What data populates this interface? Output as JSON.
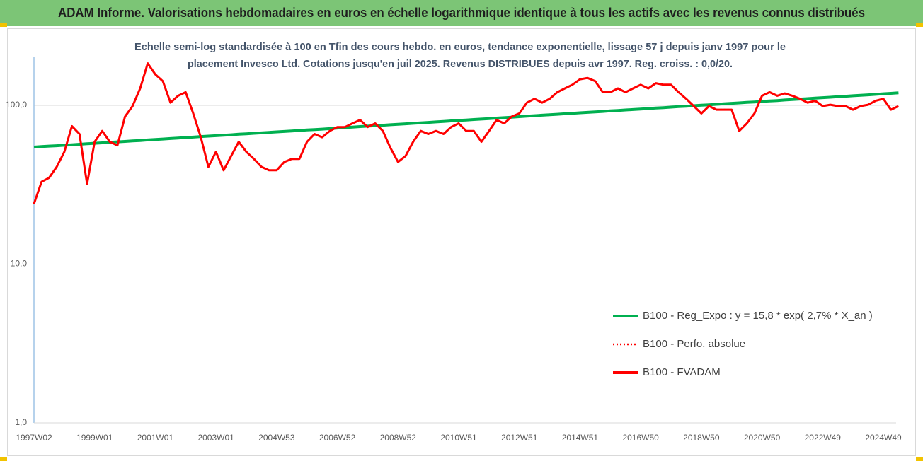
{
  "chart_data": {
    "type": "line",
    "title": "ADAM Informe. Valorisations hebdomadaires en euros en échelle logarithmique identique à tous les actifs avec les revenus connus distribués",
    "subtitle": [
      "Echelle semi-log standardisée à 100 en Tfin des cours hebdo. en euros, tendance exponentielle, lissage 57 j depuis janv 1997 pour le",
      "placement Invesco Ltd. Cotations jusqu'en juil 2025.  Revenus DISTRIBUES depuis avr 1997. Reg. croiss. : 0,0/20."
    ],
    "categories": [
      "1997W02",
      null,
      null,
      null,
      null,
      null,
      null,
      null,
      "1999W01",
      null,
      null,
      null,
      null,
      null,
      null,
      null,
      "2001W01",
      null,
      null,
      null,
      null,
      null,
      null,
      null,
      "2003W01",
      null,
      null,
      null,
      null,
      null,
      null,
      null,
      "2004W53",
      null,
      null,
      null,
      null,
      null,
      null,
      null,
      "2006W52",
      null,
      null,
      null,
      null,
      null,
      null,
      null,
      "2008W52",
      null,
      null,
      null,
      null,
      null,
      null,
      null,
      "2010W51",
      null,
      null,
      null,
      null,
      null,
      null,
      null,
      "2012W51",
      null,
      null,
      null,
      null,
      null,
      null,
      null,
      "2014W51",
      null,
      null,
      null,
      null,
      null,
      null,
      null,
      "2016W50",
      null,
      null,
      null,
      null,
      null,
      null,
      null,
      "2018W50",
      null,
      null,
      null,
      null,
      null,
      null,
      null,
      "2020W50",
      null,
      null,
      null,
      null,
      null,
      null,
      null,
      "2022W49",
      null,
      null,
      null,
      null,
      null,
      null,
      null,
      "2024W49",
      null,
      null
    ],
    "series": [
      {
        "name": "B100 - Reg_Expo : y = 15,8 * exp( 2,7% *  X_an )",
        "color": "#00b050",
        "style": "solid",
        "values": [
          54.6,
          55.0,
          55.4,
          55.7,
          56.1,
          56.5,
          56.9,
          57.3,
          57.7,
          58.1,
          58.5,
          58.9,
          59.3,
          59.7,
          60.1,
          60.6,
          61.0,
          61.4,
          61.8,
          62.3,
          62.7,
          63.1,
          63.6,
          64.0,
          64.4,
          64.9,
          65.3,
          65.8,
          66.2,
          66.7,
          67.1,
          67.6,
          68.1,
          68.5,
          69.0,
          69.5,
          70.0,
          70.4,
          70.9,
          71.4,
          72.0,
          72.5,
          73.0,
          73.5,
          74.0,
          74.5,
          75.0,
          75.5,
          76.0,
          76.5,
          77.1,
          77.6,
          78.1,
          78.7,
          79.2,
          79.8,
          80.4,
          80.9,
          81.5,
          82.0,
          82.6,
          83.2,
          83.7,
          84.3,
          84.9,
          85.5,
          86.1,
          86.7,
          87.3,
          87.9,
          88.5,
          89.1,
          89.8,
          90.4,
          91.0,
          91.6,
          92.3,
          92.9,
          93.6,
          94.2,
          94.8,
          95.5,
          96.2,
          96.8,
          97.5,
          98.2,
          98.8,
          99.5,
          100.2,
          100.9,
          101.6,
          102.3,
          103.0,
          103.7,
          104.4,
          105.1,
          105.9,
          106.6,
          107.3,
          108.1,
          108.8,
          109.6,
          110.3,
          111.1,
          111.9,
          112.6,
          113.4,
          114.2,
          115.0,
          115.8,
          116.6,
          117.4,
          118.3,
          119.1,
          119.9
        ]
      },
      {
        "name": "B100 - Perfo. absolue",
        "color": "#ff0000",
        "style": "dotted",
        "values": [
          24,
          33,
          35,
          41,
          51,
          74,
          66,
          32,
          59,
          69,
          59,
          56,
          85,
          99,
          128,
          184,
          157,
          142,
          104,
          115,
          121,
          89,
          63,
          41,
          51,
          39,
          48,
          59,
          51,
          46,
          41,
          39,
          39,
          44,
          46,
          46,
          59,
          66,
          63,
          69,
          73,
          73,
          77,
          81,
          73,
          77,
          69,
          54,
          44,
          48,
          59,
          69,
          66,
          69,
          66,
          73,
          77,
          69,
          69,
          59,
          69,
          81,
          77,
          85,
          89,
          104,
          110,
          104,
          110,
          121,
          128,
          135,
          146,
          149,
          142,
          121,
          121,
          128,
          121,
          128,
          135,
          128,
          138,
          135,
          135,
          121,
          110,
          99,
          89,
          99,
          94,
          94,
          94,
          69,
          77,
          89,
          115,
          121,
          115,
          119,
          115,
          110,
          104,
          107,
          99,
          101,
          99,
          99,
          94,
          99,
          101,
          107,
          110,
          94,
          99
        ]
      },
      {
        "name": "B100 - FVADAM",
        "color": "#ff0000",
        "style": "solid",
        "values": [
          24,
          33,
          35,
          41,
          51,
          74,
          66,
          32,
          59,
          69,
          59,
          56,
          85,
          99,
          128,
          184,
          157,
          142,
          104,
          115,
          121,
          89,
          63,
          41,
          51,
          39,
          48,
          59,
          51,
          46,
          41,
          39,
          39,
          44,
          46,
          46,
          59,
          66,
          63,
          69,
          73,
          73,
          77,
          81,
          73,
          77,
          69,
          54,
          44,
          48,
          59,
          69,
          66,
          69,
          66,
          73,
          77,
          69,
          69,
          59,
          69,
          81,
          77,
          85,
          89,
          104,
          110,
          104,
          110,
          121,
          128,
          135,
          146,
          149,
          142,
          121,
          121,
          128,
          121,
          128,
          135,
          128,
          138,
          135,
          135,
          121,
          110,
          99,
          89,
          99,
          94,
          94,
          94,
          69,
          77,
          89,
          115,
          121,
          115,
          119,
          115,
          110,
          104,
          107,
          99,
          101,
          99,
          99,
          94,
          99,
          101,
          107,
          110,
          94,
          99
        ]
      }
    ],
    "ylim": [
      1,
      203
    ],
    "yticks": [
      {
        "value": 1,
        "label": "1,0"
      },
      {
        "value": 10,
        "label": "10,0"
      },
      {
        "value": 100,
        "label": "100,0"
      }
    ],
    "log_scale": true,
    "grid": true,
    "legend": "lower right"
  }
}
